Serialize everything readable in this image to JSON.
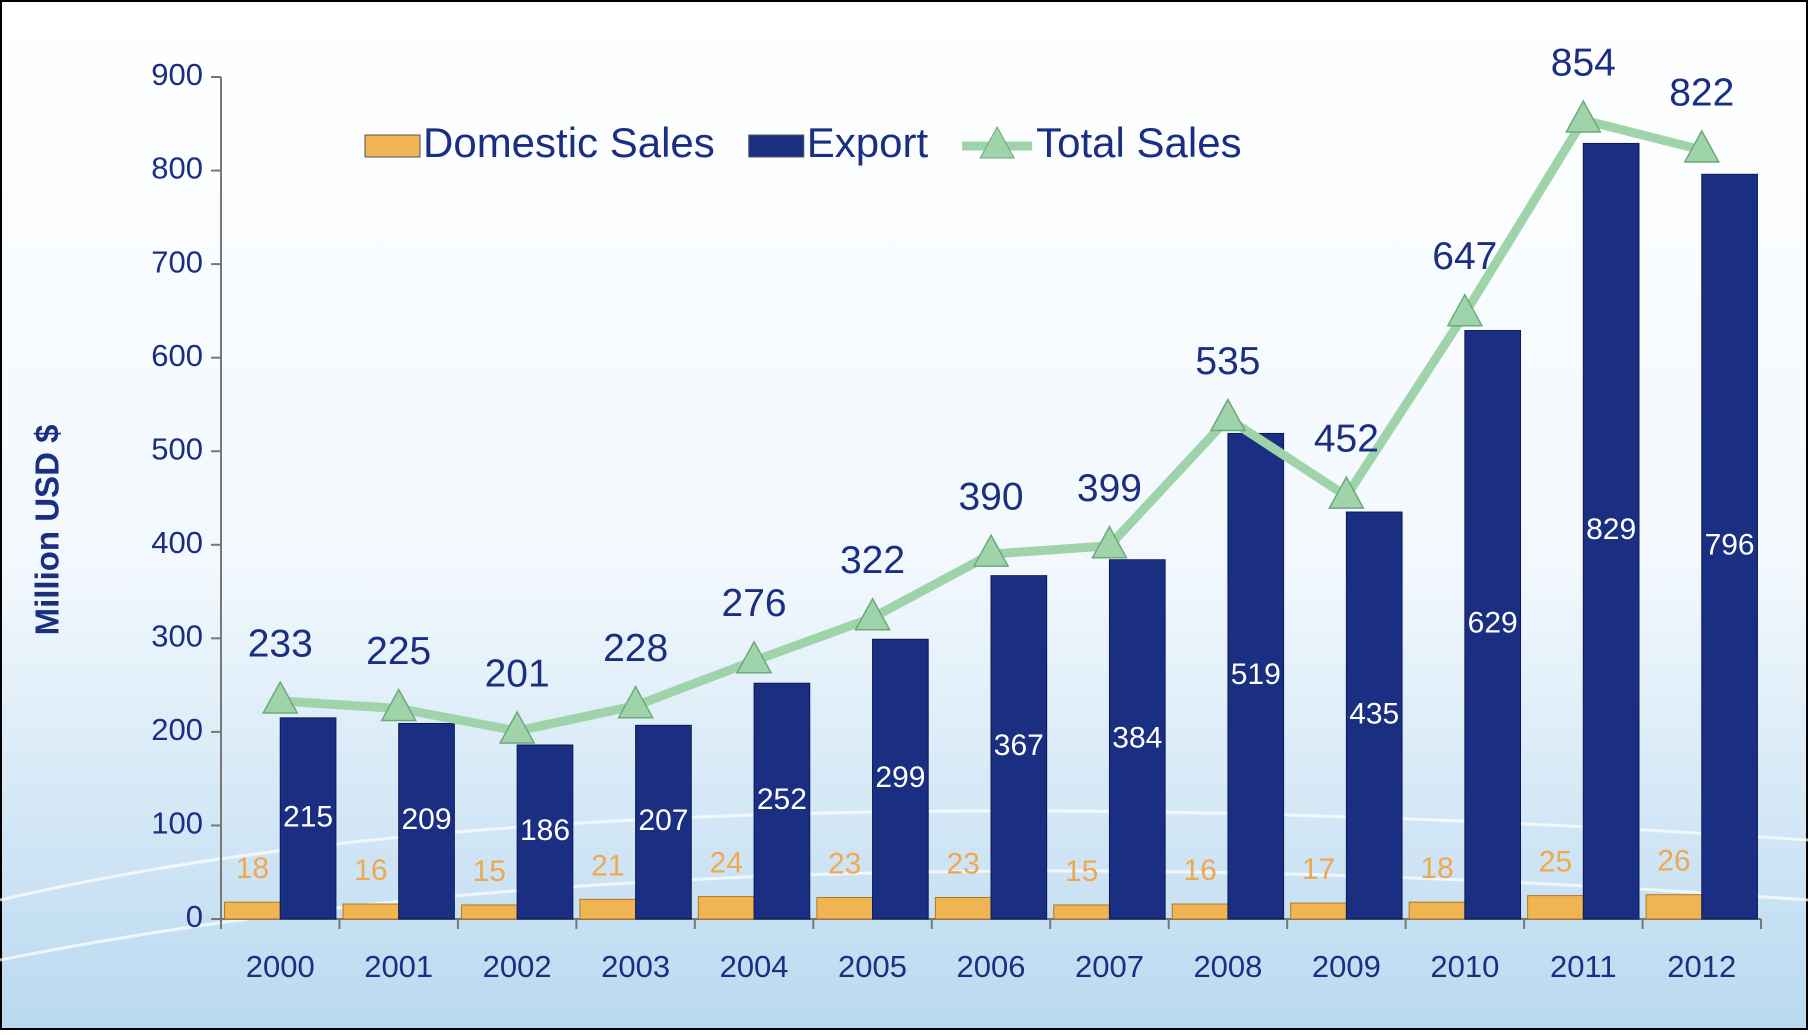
{
  "chart_data": {
    "type": "bar-line",
    "y_label": "Million USD $",
    "categories": [
      "2000",
      "2001",
      "2002",
      "2003",
      "2004",
      "2005",
      "2006",
      "2007",
      "2008",
      "2009",
      "2010",
      "2011",
      "2012"
    ],
    "series": [
      {
        "name": "Domestic Sales",
        "type": "bar",
        "color": "#f0b452",
        "values": [
          18,
          16,
          15,
          21,
          24,
          23,
          23,
          15,
          16,
          17,
          18,
          25,
          26
        ]
      },
      {
        "name": "Export",
        "type": "bar",
        "color": "#1b2f82",
        "values": [
          215,
          209,
          186,
          207,
          252,
          299,
          367,
          384,
          519,
          435,
          629,
          829,
          796
        ]
      },
      {
        "name": "Total Sales",
        "type": "line",
        "color": "#9fd4aa",
        "values": [
          233,
          225,
          201,
          228,
          276,
          322,
          390,
          399,
          535,
          452,
          647,
          854,
          822
        ]
      }
    ],
    "ylim": [
      0,
      900
    ],
    "yticks": [
      0,
      100,
      200,
      300,
      400,
      500,
      600,
      700,
      800,
      900
    ],
    "legend": "top"
  }
}
